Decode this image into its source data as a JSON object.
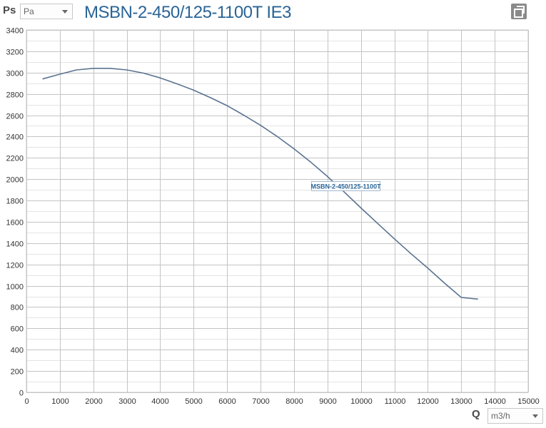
{
  "header": {
    "y_axis_name": "Ps",
    "y_unit": "Pa",
    "title": "MSBN-2-450/125-1100T IE3"
  },
  "footer": {
    "x_axis_name": "Q",
    "x_unit": "m3/h"
  },
  "icons": {
    "copy": "copy-icon",
    "dropdown": "chevron-down-icon"
  },
  "chart_data": {
    "type": "line",
    "title": "MSBN-2-450/125-1100T IE3",
    "xlabel": "Q",
    "ylabel": "Ps",
    "xlim": [
      0,
      15000
    ],
    "ylim": [
      0,
      3400
    ],
    "x_ticks": [
      0,
      1000,
      2000,
      3000,
      4000,
      5000,
      6000,
      7000,
      8000,
      9000,
      10000,
      11000,
      12000,
      13000,
      14000,
      15000
    ],
    "y_ticks": [
      0,
      200,
      400,
      600,
      800,
      1000,
      1200,
      1400,
      1600,
      1800,
      2000,
      2200,
      2400,
      2600,
      2800,
      3000,
      3200,
      3400
    ],
    "grid": true,
    "line_color": "#5a7390",
    "series": [
      {
        "name": "MSBN-2-450/125-1100T",
        "x": [
          480,
          1000,
          1500,
          2000,
          2500,
          3000,
          3500,
          4000,
          4500,
          5000,
          5500,
          6000,
          6500,
          7000,
          7500,
          8000,
          8500,
          9000,
          9500,
          10000,
          10500,
          11000,
          11500,
          12000,
          12500,
          13000,
          13500
        ],
        "y": [
          2940,
          2985,
          3025,
          3040,
          3040,
          3025,
          2995,
          2950,
          2895,
          2835,
          2765,
          2690,
          2600,
          2505,
          2400,
          2285,
          2160,
          2025,
          1880,
          1730,
          1585,
          1440,
          1300,
          1165,
          1025,
          890,
          875
        ]
      }
    ],
    "annotations": [
      {
        "text": "MSBN-2-450/125-1100T",
        "x": 9550,
        "y": 1935
      }
    ]
  }
}
